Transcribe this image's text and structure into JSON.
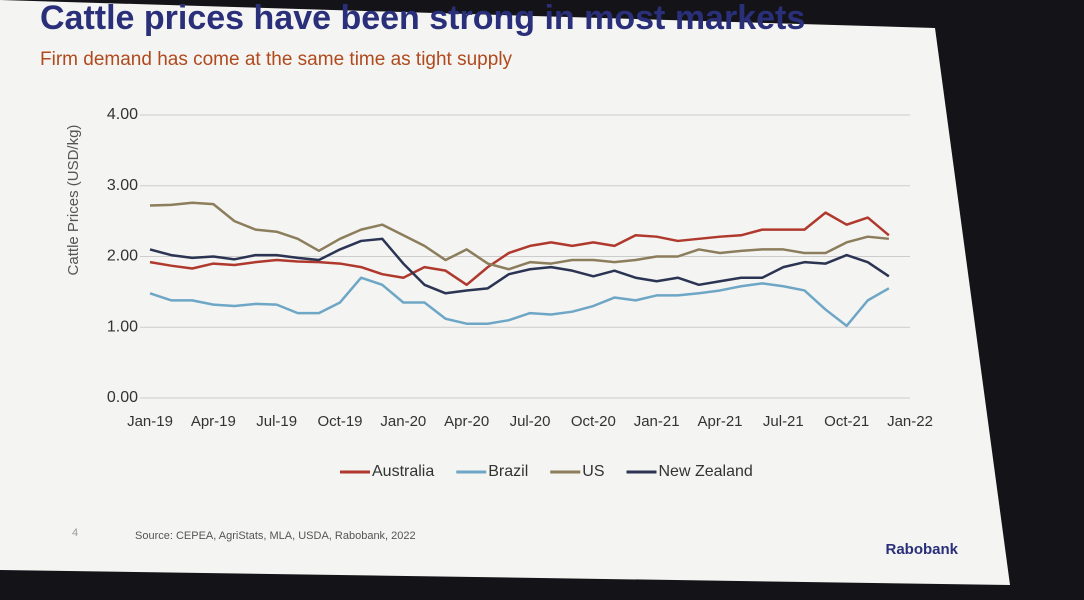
{
  "chart_data": {
    "type": "line",
    "title": "Cattle prices have been strong in most markets",
    "subtitle": "Firm demand has come at the same time as tight supply",
    "y_label": "Cattle Prices (USD/kg)",
    "categories": [
      "Jan-19",
      null,
      null,
      "Apr-19",
      null,
      null,
      "Jul-19",
      null,
      null,
      "Oct-19",
      null,
      null,
      "Jan-20",
      null,
      null,
      "Apr-20",
      null,
      null,
      "Jul-20",
      null,
      null,
      "Oct-20",
      null,
      null,
      "Jan-21",
      null,
      null,
      "Apr-21",
      null,
      null,
      "Jul-21",
      null,
      null,
      "Oct-21",
      null,
      null,
      "Jan-22"
    ],
    "series": [
      {
        "name": "Australia",
        "color": "#b0392e",
        "values": [
          1.92,
          1.87,
          1.83,
          1.9,
          1.88,
          1.92,
          1.95,
          1.93,
          1.92,
          1.9,
          1.85,
          1.75,
          1.7,
          1.85,
          1.8,
          1.6,
          1.85,
          2.05,
          2.15,
          2.2,
          2.15,
          2.2,
          2.15,
          2.3,
          2.28,
          2.22,
          2.25,
          2.28,
          2.3,
          2.38,
          2.38,
          2.38,
          2.62,
          2.45,
          2.55,
          2.3,
          null
        ]
      },
      {
        "name": "Brazil",
        "color": "#6ea6c6",
        "values": [
          1.48,
          1.38,
          1.38,
          1.32,
          1.3,
          1.33,
          1.32,
          1.2,
          1.2,
          1.35,
          1.7,
          1.6,
          1.35,
          1.35,
          1.12,
          1.05,
          1.05,
          1.1,
          1.2,
          1.18,
          1.22,
          1.3,
          1.42,
          1.38,
          1.45,
          1.45,
          1.48,
          1.52,
          1.58,
          1.62,
          1.58,
          1.52,
          1.25,
          1.02,
          1.38,
          1.55,
          null
        ]
      },
      {
        "name": "US",
        "color": "#8c7d5c",
        "values": [
          2.72,
          2.73,
          2.76,
          2.74,
          2.5,
          2.38,
          2.35,
          2.25,
          2.08,
          2.25,
          2.38,
          2.45,
          2.3,
          2.15,
          1.95,
          2.1,
          1.9,
          1.82,
          1.92,
          1.9,
          1.95,
          1.95,
          1.92,
          1.95,
          2.0,
          2.0,
          2.1,
          2.05,
          2.08,
          2.1,
          2.1,
          2.05,
          2.05,
          2.2,
          2.28,
          2.25,
          null
        ]
      },
      {
        "name": "New Zealand",
        "color": "#2b3452",
        "values": [
          2.1,
          2.02,
          1.98,
          2.0,
          1.96,
          2.02,
          2.02,
          1.98,
          1.95,
          2.1,
          2.22,
          2.25,
          1.9,
          1.6,
          1.48,
          1.52,
          1.55,
          1.75,
          1.82,
          1.85,
          1.8,
          1.72,
          1.8,
          1.7,
          1.65,
          1.7,
          1.6,
          1.65,
          1.7,
          1.7,
          1.85,
          1.92,
          1.9,
          2.02,
          1.92,
          1.72,
          null
        ]
      }
    ],
    "ylim": [
      0,
      4
    ],
    "yticks": [
      {
        "value": 0,
        "label": "0.00"
      },
      {
        "value": 1,
        "label": "1.00"
      },
      {
        "value": 2,
        "label": "2.00"
      },
      {
        "value": 3,
        "label": "3.00"
      },
      {
        "value": 4,
        "label": "4.00"
      }
    ],
    "grid": true,
    "legend": "bottom",
    "page_number": "4",
    "source": "Source: CEPEA, AgriStats, MLA, USDA, Rabobank, 2022",
    "brand": "Rabobank"
  }
}
